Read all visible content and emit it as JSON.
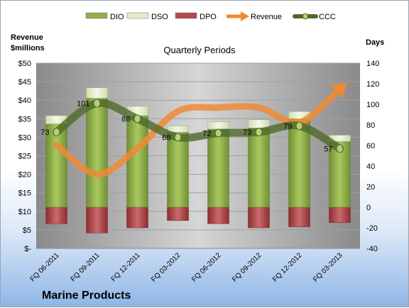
{
  "chart_data": {
    "type": "bar",
    "title": "Quarterly Periods",
    "company": "Marine Products",
    "left_axis_label": [
      "Revenue",
      "$millions"
    ],
    "right_axis_label": "Days",
    "categories": [
      "FQ 06-2011",
      "FQ 09-2011",
      "FQ 12-2011",
      "FQ 03-2012",
      "FQ 06-2012",
      "FQ 09-2012",
      "FQ 12-2012",
      "FQ 03-2013"
    ],
    "left_ticks": [
      "$50",
      "$45",
      "$40",
      "$35",
      "$30",
      "$25",
      "$20",
      "$15",
      "$10",
      "$5",
      "$-"
    ],
    "right_ticks": [
      "140",
      "120",
      "100",
      "80",
      "60",
      "40",
      "20",
      "0",
      "-20",
      "-40"
    ],
    "left_ylim": [
      0,
      50
    ],
    "right_ylim": [
      -40,
      140
    ],
    "legend": [
      {
        "name": "DIO",
        "type": "bar",
        "color": "#8db04a"
      },
      {
        "name": "DSO",
        "type": "bar",
        "color": "#e2eccc"
      },
      {
        "name": "DPO",
        "type": "bar",
        "color": "#b5484b"
      },
      {
        "name": "Revenue",
        "type": "arrow",
        "color": "#f08a32"
      },
      {
        "name": "CCC",
        "type": "line",
        "color": "#4e6a2a"
      }
    ],
    "legend_position": "top",
    "series": [
      {
        "name": "DIO",
        "axis": "right",
        "values": [
          81,
          106,
          89,
          73,
          76,
          77,
          86,
          64
        ]
      },
      {
        "name": "DSO",
        "axis": "right",
        "values": [
          8,
          10,
          9,
          6,
          7,
          8,
          7,
          6
        ]
      },
      {
        "name": "DPO",
        "axis": "right",
        "values": [
          -16,
          -25,
          -20,
          -13,
          -16,
          -20,
          -19,
          -15
        ]
      },
      {
        "name": "CCC",
        "axis": "right",
        "values": [
          73,
          101,
          86,
          68,
          72,
          73,
          79,
          57
        ],
        "labels": [
          "73",
          "101",
          "86",
          "68",
          "72",
          "73",
          "79",
          "57"
        ]
      },
      {
        "name": "Revenue",
        "axis": "left",
        "values": [
          28,
          20,
          27,
          37,
          38,
          38,
          34,
          43
        ]
      }
    ]
  }
}
